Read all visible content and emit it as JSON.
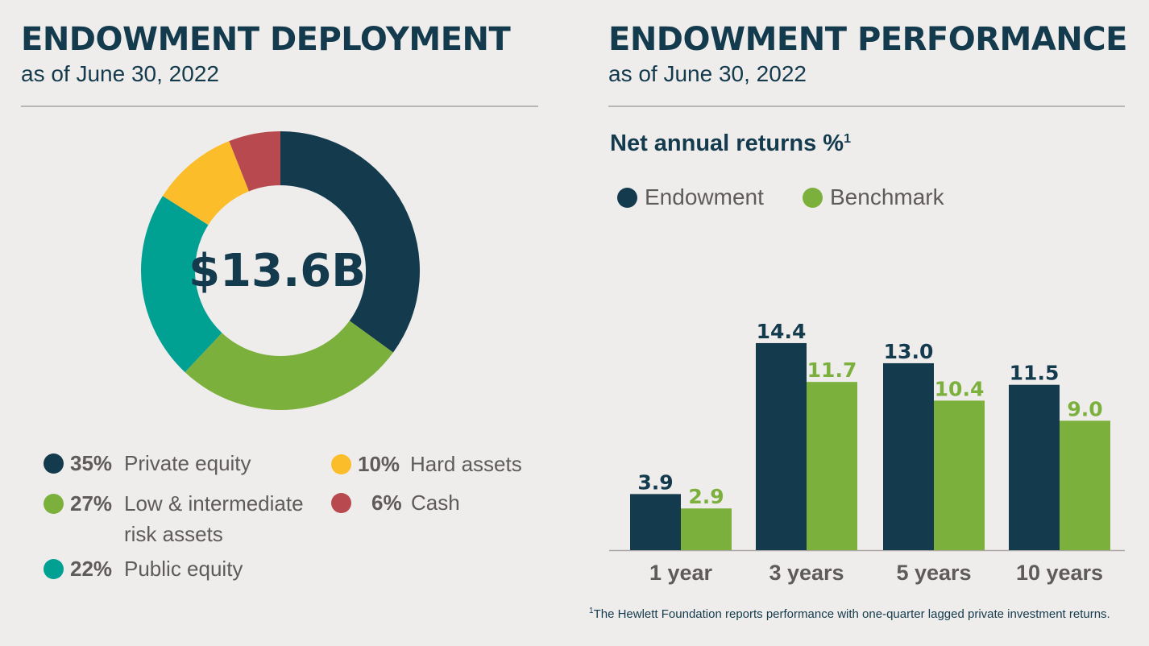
{
  "left": {
    "title": "ENDOWMENT DEPLOYMENT",
    "subtitle": "as of June 30, 2022"
  },
  "right": {
    "title": "ENDOWMENT PERFORMANCE",
    "subtitle": "as of June 30, 2022"
  },
  "colors": {
    "navy": "#143b4d",
    "green": "#7cb03d",
    "teal": "#00a093",
    "yellow": "#fbbd2a",
    "red": "#b84a4f",
    "background": "#efedec",
    "text_gray": "#5e5b5a"
  },
  "chart_data": [
    {
      "type": "pie",
      "variant": "donut",
      "center_label": "$13.6B",
      "slices": [
        {
          "pct_label": "35%",
          "label": "Private equity",
          "value": 35,
          "color": "#143b4d"
        },
        {
          "pct_label": "27%",
          "label": "Low & intermediate risk assets",
          "value": 27,
          "color": "#7cb03d"
        },
        {
          "pct_label": "22%",
          "label": "Public equity",
          "value": 22,
          "color": "#00a093"
        },
        {
          "pct_label": "10%",
          "label": "Hard assets",
          "value": 10,
          "color": "#fbbd2a"
        },
        {
          "pct_label": "6%",
          "label": "Cash",
          "value": 6,
          "color": "#b84a4f"
        }
      ]
    },
    {
      "type": "bar",
      "title": "Net annual returns %",
      "title_footnote_mark": "1",
      "categories": [
        "1 year",
        "3 years",
        "5 years",
        "10 years"
      ],
      "series": [
        {
          "name": "Endowment",
          "values": [
            3.9,
            14.4,
            13.0,
            11.5
          ],
          "labels": [
            "3.9",
            "14.4",
            "13.0",
            "11.5"
          ],
          "color": "#143b4d"
        },
        {
          "name": "Benchmark",
          "values": [
            2.9,
            11.7,
            10.4,
            9.0
          ],
          "labels": [
            "2.9",
            "11.7",
            "10.4",
            "9.0"
          ],
          "color": "#7cb03d"
        }
      ],
      "ylim": [
        0,
        16
      ],
      "legend": "top-left",
      "grid": false
    }
  ],
  "footnote": {
    "mark": "1",
    "text": "The Hewlett Foundation reports performance with one-quarter lagged private investment returns."
  }
}
